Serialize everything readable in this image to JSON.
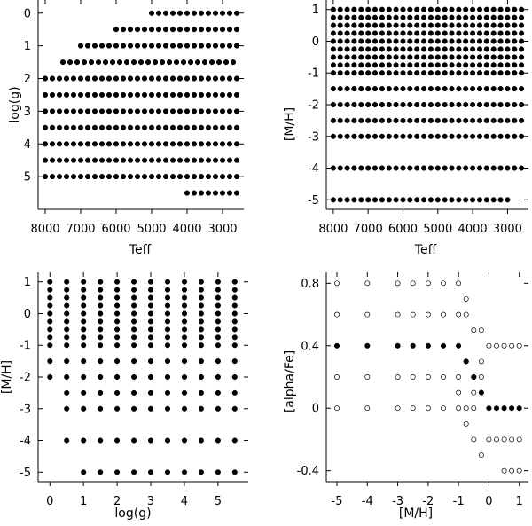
{
  "chart_data": [
    {
      "id": "teff-logg",
      "type": "scatter",
      "xlabel": "Teff",
      "ylabel": "log(g)",
      "x_reversed": true,
      "y_reversed": true,
      "xlim": [
        8200,
        2400
      ],
      "ylim": [
        -0.4,
        6.0
      ],
      "x_ticks": [
        8000,
        7000,
        6000,
        5000,
        4000,
        3000
      ],
      "y_ticks": [
        0,
        1,
        2,
        3,
        4,
        5
      ],
      "x_tick_labels": [
        "8000",
        "7000",
        "6000",
        "5000",
        "4000",
        "3000"
      ],
      "y_tick_labels": [
        "0",
        "1",
        "2",
        "3",
        "4",
        "5"
      ],
      "marker": "filled",
      "rows": [
        {
          "y": 0.0,
          "x_from": 5000,
          "x_to": 2600,
          "x_step": 200
        },
        {
          "y": 0.5,
          "x_from": 6000,
          "x_to": 2600,
          "x_step": 200
        },
        {
          "y": 1.0,
          "x_from": 7000,
          "x_to": 2600,
          "x_step": 200
        },
        {
          "y": 1.5,
          "x_from": 7500,
          "x_to": 2600,
          "x_step": 200
        },
        {
          "y": 2.0,
          "x_from": 8000,
          "x_to": 2600,
          "x_step": 200
        },
        {
          "y": 2.5,
          "x_from": 8000,
          "x_to": 2600,
          "x_step": 200
        },
        {
          "y": 3.0,
          "x_from": 8000,
          "x_to": 2600,
          "x_step": 200
        },
        {
          "y": 3.5,
          "x_from": 8000,
          "x_to": 2600,
          "x_step": 200
        },
        {
          "y": 4.0,
          "x_from": 8000,
          "x_to": 2600,
          "x_step": 200
        },
        {
          "y": 4.5,
          "x_from": 8000,
          "x_to": 2600,
          "x_step": 200
        },
        {
          "y": 5.0,
          "x_from": 8000,
          "x_to": 2600,
          "x_step": 200
        },
        {
          "y": 5.5,
          "x_from": 4000,
          "x_to": 2600,
          "x_step": 200
        }
      ]
    },
    {
      "id": "teff-mh",
      "type": "scatter",
      "xlabel": "Teff",
      "ylabel": "[M/H]",
      "x_reversed": true,
      "xlim": [
        8200,
        2400
      ],
      "ylim": [
        -5.3,
        1.3
      ],
      "x_ticks": [
        8000,
        7000,
        6000,
        5000,
        4000,
        3000
      ],
      "y_ticks": [
        1,
        0,
        -1,
        -2,
        -3,
        -4,
        -5
      ],
      "x_tick_labels": [
        "8000",
        "7000",
        "6000",
        "5000",
        "4000",
        "3000"
      ],
      "y_tick_labels": [
        "1",
        "0",
        "-1",
        "-2",
        "-3",
        "-4",
        "-5"
      ],
      "marker": "filled",
      "rows": [
        {
          "y": 1.0,
          "x_from": 8000,
          "x_to": 2600,
          "x_step": 200
        },
        {
          "y": 0.75,
          "x_from": 8000,
          "x_to": 2600,
          "x_step": 200
        },
        {
          "y": 0.5,
          "x_from": 8000,
          "x_to": 2600,
          "x_step": 200
        },
        {
          "y": 0.25,
          "x_from": 8000,
          "x_to": 2600,
          "x_step": 200
        },
        {
          "y": 0.0,
          "x_from": 8000,
          "x_to": 2600,
          "x_step": 200
        },
        {
          "y": -0.25,
          "x_from": 8000,
          "x_to": 2600,
          "x_step": 200
        },
        {
          "y": -0.5,
          "x_from": 8000,
          "x_to": 2600,
          "x_step": 200
        },
        {
          "y": -0.75,
          "x_from": 8000,
          "x_to": 2600,
          "x_step": 200
        },
        {
          "y": -1.0,
          "x_from": 8000,
          "x_to": 2600,
          "x_step": 200
        },
        {
          "y": -1.5,
          "x_from": 8000,
          "x_to": 2600,
          "x_step": 200
        },
        {
          "y": -2.0,
          "x_from": 8000,
          "x_to": 2600,
          "x_step": 200
        },
        {
          "y": -2.5,
          "x_from": 8000,
          "x_to": 2600,
          "x_step": 200
        },
        {
          "y": -3.0,
          "x_from": 8000,
          "x_to": 2600,
          "x_step": 200
        },
        {
          "y": -4.0,
          "x_from": 8000,
          "x_to": 2600,
          "x_step": 200
        },
        {
          "y": -5.0,
          "x_from": 8000,
          "x_to": 3000,
          "x_step": 200
        }
      ]
    },
    {
      "id": "logg-mh",
      "type": "scatter",
      "xlabel": "log(g)",
      "ylabel": "[M/H]",
      "xlim": [
        -0.35,
        5.9
      ],
      "ylim": [
        -5.3,
        1.3
      ],
      "x_ticks": [
        0,
        1,
        2,
        3,
        4,
        5
      ],
      "y_ticks": [
        1,
        0,
        -1,
        -2,
        -3,
        -4,
        -5
      ],
      "x_tick_labels": [
        "0",
        "1",
        "2",
        "3",
        "4",
        "5"
      ],
      "y_tick_labels": [
        "1",
        "0",
        "-1",
        "-2",
        "-3",
        "-4",
        "-5"
      ],
      "marker": "filled",
      "rows": [
        {
          "y": 1.0,
          "x_from": 0,
          "x_to": 5.5,
          "x_step": 0.5
        },
        {
          "y": 0.75,
          "x_from": 0,
          "x_to": 5.5,
          "x_step": 0.5
        },
        {
          "y": 0.5,
          "x_from": 0,
          "x_to": 5.5,
          "x_step": 0.5
        },
        {
          "y": 0.25,
          "x_from": 0,
          "x_to": 5.5,
          "x_step": 0.5
        },
        {
          "y": 0.0,
          "x_from": 0,
          "x_to": 5.5,
          "x_step": 0.5
        },
        {
          "y": -0.25,
          "x_from": 0,
          "x_to": 5.5,
          "x_step": 0.5
        },
        {
          "y": -0.5,
          "x_from": 0,
          "x_to": 5.5,
          "x_step": 0.5
        },
        {
          "y": -0.75,
          "x_from": 0,
          "x_to": 5.5,
          "x_step": 0.5
        },
        {
          "y": -1.0,
          "x_from": 0,
          "x_to": 5.5,
          "x_step": 0.5
        },
        {
          "y": -1.5,
          "x_from": 0,
          "x_to": 5.5,
          "x_step": 0.5
        },
        {
          "y": -2.0,
          "x_from": 0,
          "x_to": 5.5,
          "x_step": 0.5
        },
        {
          "y": -2.5,
          "x_from": 0.5,
          "x_to": 5.5,
          "x_step": 0.5
        },
        {
          "y": -3.0,
          "x_from": 0.5,
          "x_to": 5.5,
          "x_step": 0.5
        },
        {
          "y": -4.0,
          "x_from": 0.5,
          "x_to": 5.5,
          "x_step": 0.5
        },
        {
          "y": -5.0,
          "x_from": 1.0,
          "x_to": 5.5,
          "x_step": 0.5
        }
      ]
    },
    {
      "id": "mh-alpha",
      "type": "scatter",
      "xlabel": "[M/H]",
      "ylabel": "[alpha/Fe]",
      "xlim": [
        -5.35,
        1.3
      ],
      "ylim": [
        -0.47,
        0.87
      ],
      "x_ticks": [
        -5,
        -4,
        -3,
        -2,
        -1,
        0,
        1
      ],
      "y_ticks": [
        0.8,
        0.4,
        0,
        -0.4
      ],
      "x_tick_labels": [
        "-5",
        "-4",
        "-3",
        "-2",
        "-1",
        "0",
        "1"
      ],
      "y_tick_labels": [
        "0.8",
        "0.4",
        "0",
        "-0.4"
      ],
      "series": [
        {
          "marker": "open",
          "points": [
            [
              -5,
              0.8
            ],
            [
              -4,
              0.8
            ],
            [
              -3,
              0.8
            ],
            [
              -2.5,
              0.8
            ],
            [
              -2,
              0.8
            ],
            [
              -1.5,
              0.8
            ],
            [
              -1,
              0.8
            ],
            [
              -0.75,
              0.7
            ],
            [
              -5,
              0.6
            ],
            [
              -4,
              0.6
            ],
            [
              -3,
              0.6
            ],
            [
              -2.5,
              0.6
            ],
            [
              -2,
              0.6
            ],
            [
              -1.5,
              0.6
            ],
            [
              -1,
              0.6
            ],
            [
              -0.75,
              0.6
            ],
            [
              -0.5,
              0.5
            ],
            [
              -0.25,
              0.5
            ],
            [
              -0.75,
              0.3
            ],
            [
              -0.25,
              0.3
            ],
            [
              -5,
              0.2
            ],
            [
              -4,
              0.2
            ],
            [
              -3,
              0.2
            ],
            [
              -2.5,
              0.2
            ],
            [
              -2,
              0.2
            ],
            [
              -1.5,
              0.2
            ],
            [
              -1,
              0.2
            ],
            [
              -0.5,
              0.2
            ],
            [
              -0.25,
              0.2
            ],
            [
              -1,
              0.1
            ],
            [
              -0.5,
              0.1
            ],
            [
              -5,
              0
            ],
            [
              -4,
              0
            ],
            [
              -3,
              0
            ],
            [
              -2.5,
              0
            ],
            [
              -2,
              0
            ],
            [
              -1.5,
              0
            ],
            [
              -1,
              0
            ],
            [
              -0.75,
              0
            ],
            [
              -0.5,
              0
            ],
            [
              -0.75,
              -0.1
            ],
            [
              -0.5,
              -0.2
            ],
            [
              -0.25,
              -0.3
            ],
            [
              0,
              0.4
            ],
            [
              0.25,
              0.4
            ],
            [
              0.5,
              0.4
            ],
            [
              0.75,
              0.4
            ],
            [
              1,
              0.4
            ],
            [
              0,
              -0.2
            ],
            [
              0.25,
              -0.2
            ],
            [
              0.5,
              -0.2
            ],
            [
              0.75,
              -0.2
            ],
            [
              1,
              -0.2
            ],
            [
              0.5,
              -0.4
            ],
            [
              0.75,
              -0.4
            ],
            [
              1,
              -0.4
            ]
          ]
        },
        {
          "marker": "filled",
          "points": [
            [
              -5,
              0.4
            ],
            [
              -4,
              0.4
            ],
            [
              -3,
              0.4
            ],
            [
              -2.5,
              0.4
            ],
            [
              -2,
              0.4
            ],
            [
              -1.5,
              0.4
            ],
            [
              -1,
              0.4
            ],
            [
              -0.75,
              0.3
            ],
            [
              -0.5,
              0.2
            ],
            [
              -0.25,
              0.1
            ],
            [
              0,
              0
            ],
            [
              0.25,
              0
            ],
            [
              0.5,
              0
            ],
            [
              0.75,
              0
            ],
            [
              1,
              0
            ]
          ]
        }
      ]
    }
  ]
}
